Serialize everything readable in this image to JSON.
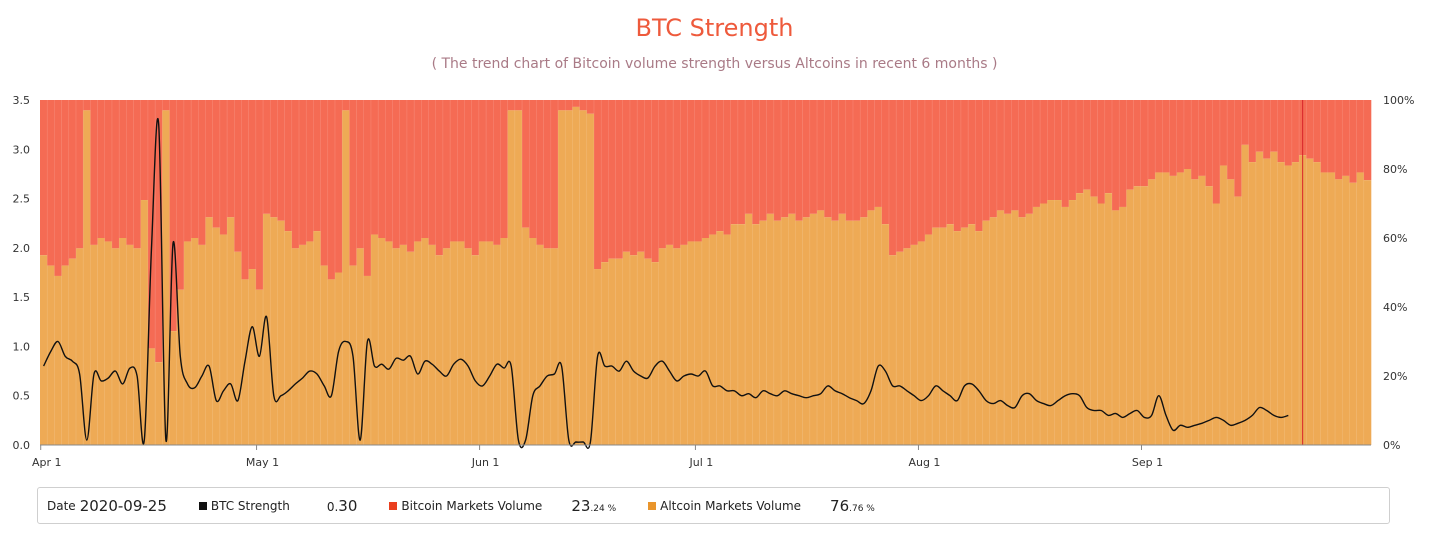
{
  "title": "BTC Strength",
  "subtitle": "( The trend chart of Bitcoin volume strength versus Altcoins in recent 6 months )",
  "colors": {
    "title": "#ee5a3c",
    "subtitle": "#a97a86",
    "bitcoin": "#f56b54",
    "altcoin": "#eeaa55",
    "line": "#111111",
    "cursor": "#d8242a"
  },
  "legend": {
    "date_label": "Date",
    "date_value": "2020-09-25",
    "strength_label": "BTC Strength",
    "strength_int": "0.",
    "strength_frac": "30",
    "btc_label": "Bitcoin Markets Volume",
    "btc_int": "23",
    "btc_frac": ".24 %",
    "alt_label": "Altcoin Markets Volume",
    "alt_int": "76",
    "alt_frac": ".76 %"
  },
  "chart_data": {
    "type": "bar",
    "x_start": "2020-04-01",
    "x_end": "2020-09-25",
    "x_ticks": [
      "Apr 1",
      "May 1",
      "Jun 1",
      "Jul 1",
      "Aug 1",
      "Sep 1"
    ],
    "y_left": {
      "range": [
        0,
        3.5
      ],
      "ticks": [
        "0.0",
        "0.5",
        "1.0",
        "1.5",
        "2.0",
        "2.5",
        "3.0",
        "3.5"
      ]
    },
    "y_right": {
      "range": [
        0,
        100
      ],
      "ticks": [
        "0%",
        "20%",
        "40%",
        "60%",
        "80%",
        "100%"
      ]
    },
    "highlighted_date": "2020-09-25",
    "series": [
      {
        "name": "Altcoin Markets Volume",
        "unit": "%",
        "stack": "volume",
        "values": [
          55,
          52,
          49,
          52,
          54,
          57,
          97,
          58,
          60,
          59,
          57,
          60,
          58,
          57,
          71,
          28,
          24,
          97,
          33,
          45,
          59,
          60,
          58,
          66,
          63,
          61,
          66,
          56,
          48,
          51,
          45,
          67,
          66,
          65,
          62,
          57,
          58,
          59,
          62,
          52,
          48,
          50,
          97,
          52,
          57,
          49,
          61,
          60,
          59,
          57,
          58,
          56,
          59,
          60,
          58,
          55,
          57,
          59,
          59,
          57,
          55,
          59,
          59,
          58,
          60,
          97,
          97,
          63,
          60,
          58,
          57,
          57,
          97,
          97,
          98,
          97,
          96,
          51,
          53,
          54,
          54,
          56,
          55,
          56,
          54,
          53,
          57,
          58,
          57,
          58,
          59,
          59,
          60,
          61,
          62,
          61,
          64,
          64,
          67,
          64,
          65,
          67,
          65,
          66,
          67,
          65,
          66,
          67,
          68,
          66,
          65,
          67,
          65,
          65,
          66,
          68,
          69,
          64,
          55,
          56,
          57,
          58,
          59,
          61,
          63,
          63,
          64,
          62,
          63,
          64,
          62,
          65,
          66,
          68,
          67,
          68,
          66,
          67,
          69,
          70,
          71,
          71,
          69,
          71,
          73,
          74,
          72,
          70,
          73,
          68,
          69,
          74,
          75,
          75,
          77,
          79,
          79,
          78,
          79,
          80,
          77,
          78,
          75,
          70,
          81,
          77,
          72,
          87,
          82,
          85,
          83,
          85,
          82,
          81,
          82,
          84,
          83,
          82,
          79,
          79,
          77,
          78,
          76,
          79,
          76.76
        ]
      },
      {
        "name": "Bitcoin Markets Volume",
        "unit": "%",
        "stack": "volume",
        "values": [
          45,
          48,
          51,
          48,
          46,
          43,
          3,
          42,
          40,
          41,
          43,
          40,
          42,
          43,
          29,
          72,
          76,
          3,
          67,
          55,
          41,
          40,
          42,
          34,
          37,
          39,
          34,
          44,
          52,
          49,
          55,
          33,
          34,
          35,
          38,
          43,
          42,
          41,
          38,
          48,
          52,
          50,
          3,
          48,
          43,
          51,
          39,
          40,
          41,
          43,
          42,
          44,
          41,
          40,
          42,
          45,
          43,
          41,
          41,
          43,
          45,
          41,
          41,
          42,
          40,
          3,
          3,
          37,
          40,
          42,
          43,
          43,
          3,
          3,
          2,
          3,
          4,
          49,
          47,
          46,
          46,
          44,
          45,
          44,
          46,
          47,
          43,
          42,
          43,
          42,
          41,
          41,
          40,
          39,
          38,
          39,
          36,
          36,
          33,
          36,
          35,
          33,
          35,
          34,
          33,
          35,
          34,
          33,
          32,
          34,
          35,
          33,
          35,
          35,
          34,
          32,
          31,
          36,
          45,
          44,
          43,
          42,
          41,
          39,
          37,
          37,
          36,
          38,
          37,
          36,
          38,
          35,
          34,
          32,
          33,
          32,
          34,
          33,
          31,
          30,
          29,
          29,
          31,
          29,
          27,
          26,
          28,
          30,
          27,
          32,
          31,
          26,
          25,
          25,
          23,
          21,
          21,
          22,
          21,
          20,
          23,
          22,
          25,
          30,
          19,
          23,
          28,
          13,
          18,
          15,
          17,
          15,
          18,
          19,
          18,
          16,
          17,
          18,
          21,
          21,
          23,
          22,
          24,
          21,
          23.24
        ]
      },
      {
        "name": "BTC Strength",
        "values": [
          0.8,
          0.95,
          1.05,
          0.9,
          0.85,
          0.72,
          0.05,
          0.72,
          0.65,
          0.68,
          0.75,
          0.62,
          0.78,
          0.7,
          0.05,
          2.0,
          3.25,
          0.05,
          2.05,
          0.9,
          0.62,
          0.58,
          0.7,
          0.8,
          0.45,
          0.55,
          0.62,
          0.45,
          0.85,
          1.2,
          0.9,
          1.3,
          0.5,
          0.5,
          0.55,
          0.62,
          0.68,
          0.75,
          0.72,
          0.6,
          0.5,
          0.95,
          1.05,
          0.9,
          0.05,
          1.05,
          0.8,
          0.82,
          0.77,
          0.88,
          0.86,
          0.9,
          0.72,
          0.85,
          0.82,
          0.75,
          0.7,
          0.82,
          0.87,
          0.8,
          0.65,
          0.6,
          0.7,
          0.82,
          0.78,
          0.8,
          0.05,
          0.05,
          0.5,
          0.6,
          0.7,
          0.72,
          0.8,
          0.05,
          0.03,
          0.03,
          0.03,
          0.9,
          0.8,
          0.8,
          0.75,
          0.85,
          0.75,
          0.7,
          0.68,
          0.8,
          0.85,
          0.75,
          0.65,
          0.7,
          0.72,
          0.7,
          0.75,
          0.6,
          0.6,
          0.55,
          0.55,
          0.5,
          0.52,
          0.48,
          0.55,
          0.52,
          0.5,
          0.55,
          0.52,
          0.5,
          0.48,
          0.5,
          0.52,
          0.6,
          0.55,
          0.52,
          0.48,
          0.45,
          0.42,
          0.55,
          0.8,
          0.75,
          0.6,
          0.6,
          0.55,
          0.5,
          0.45,
          0.5,
          0.6,
          0.55,
          0.5,
          0.45,
          0.6,
          0.62,
          0.55,
          0.45,
          0.42,
          0.45,
          0.4,
          0.38,
          0.5,
          0.52,
          0.45,
          0.42,
          0.4,
          0.45,
          0.5,
          0.52,
          0.5,
          0.38,
          0.35,
          0.35,
          0.3,
          0.32,
          0.28,
          0.32,
          0.35,
          0.28,
          0.3,
          0.5,
          0.3,
          0.15,
          0.2,
          0.18,
          0.2,
          0.22,
          0.25,
          0.28,
          0.25,
          0.2,
          0.22,
          0.25,
          0.3,
          0.38,
          0.35,
          0.3,
          0.28,
          0.3
        ]
      }
    ]
  }
}
